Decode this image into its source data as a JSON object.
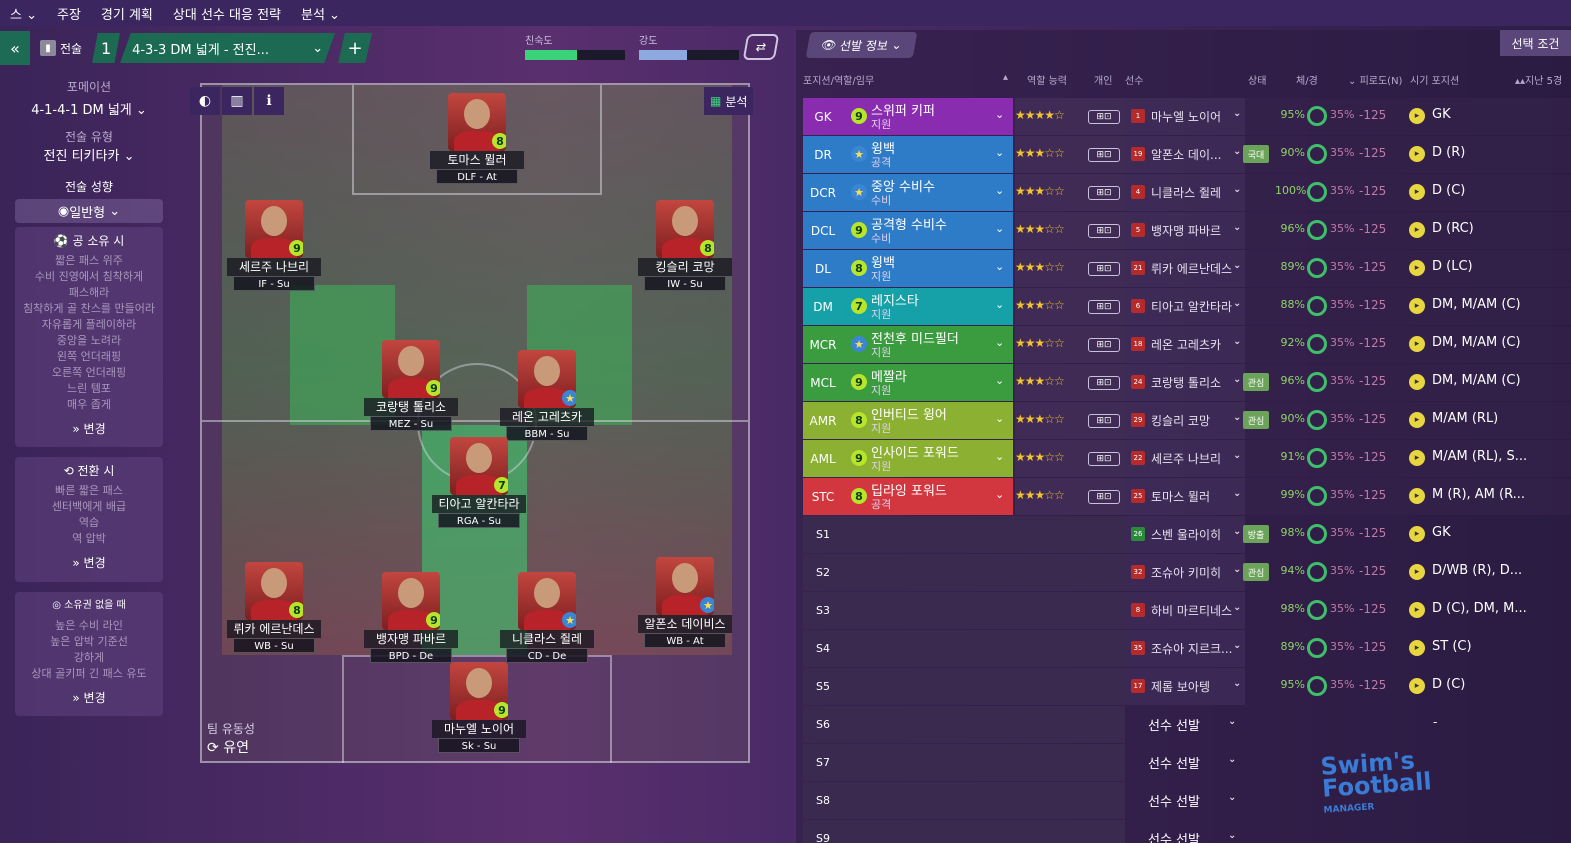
{
  "menu": [
    "스 ⌄",
    "주장",
    "경기 계획",
    "상대 선수 대응 전략",
    "분석 ⌄"
  ],
  "toolbar": {
    "back": "«",
    "tactics_label": "전술",
    "tactic_num": "1",
    "tactic_name": "4-3-3 DM 넓게 - 전진...",
    "add": "+",
    "familiarity_label": "친숙도",
    "intensity_label": "강도",
    "familiarity_fill": 0.52,
    "intensity_fill": 0.48
  },
  "left": {
    "formation_label": "포메이션",
    "formation": "4-1-4-1 DM 넓게",
    "style_label": "전술 유형",
    "style": "전진 티키타카",
    "mentality_label": "전술 성향",
    "mentality": "일반형",
    "in_poss": {
      "title": "공 소유 시",
      "lines": [
        "짧은 패스 위주",
        "수비 진영에서 침착하게",
        "패스해라",
        "침착하게 골 찬스를 만들어라",
        "자유롭게 플레이하라",
        "중앙을 노려라",
        "왼쪽 언더래핑",
        "오른쪽 언더래핑",
        "느린 템포",
        "매우 좁게"
      ],
      "change": "변경"
    },
    "transition": {
      "title": "전환 시",
      "lines": [
        "빠른 짧은 패스",
        "센터백에게 배급",
        "역습",
        "역 압박"
      ],
      "change": "변경"
    },
    "out_poss": {
      "title": "소유권 없을 때",
      "lines": [
        "높은 수비 라인",
        "높은 압박 기준선",
        "강하게",
        "상대 골키퍼 긴 패스 유도"
      ],
      "change": "변경"
    }
  },
  "pitch": {
    "analysis": "분석",
    "fluidity_label": "팀 유동성",
    "fluidity": "유연",
    "players": [
      {
        "name": "토마스 뮐러",
        "role": "DLF - At",
        "rating": "8",
        "star": false
      },
      {
        "name": "세르주 나브리",
        "role": "IF - Su",
        "rating": "9",
        "star": false
      },
      {
        "name": "킹슬리 코망",
        "role": "IW - Su",
        "rating": "8",
        "star": false
      },
      {
        "name": "코랑탱 톨리소",
        "role": "MEZ - Su",
        "rating": "9",
        "star": false
      },
      {
        "name": "레온 고레츠카",
        "role": "BBM - Su",
        "rating": "★",
        "star": true
      },
      {
        "name": "티아고 알칸타라",
        "role": "RGA - Su",
        "rating": "7",
        "star": false
      },
      {
        "name": "뤼카 에르난데스",
        "role": "WB - Su",
        "rating": "8",
        "star": false
      },
      {
        "name": "뱅자맹 파바르",
        "role": "BPD - De",
        "rating": "9",
        "star": false
      },
      {
        "name": "니클라스 쥘레",
        "role": "CD - De",
        "rating": "★",
        "star": true
      },
      {
        "name": "알폰소 데이비스",
        "role": "WB - At",
        "rating": "★",
        "star": true
      },
      {
        "name": "마누엘 노이어",
        "role": "Sk - Su",
        "rating": "9",
        "star": false
      }
    ]
  },
  "right": {
    "selection_info": "선발 정보",
    "select_condition": "선택 조건",
    "headers": {
      "pos": "포지션/역할/임무",
      "ability": "역할 능력",
      "indiv": "개인",
      "player": "선수",
      "status": "상태",
      "fitness": "체/경",
      "fatigue": "피로도(N)",
      "natural": "시기 포지션",
      "last": "지난 5경"
    },
    "rows": [
      {
        "pos": "GK",
        "role": "스위퍼 키퍼",
        "duty": "지원",
        "rating": "9",
        "stars": "★★★★☆",
        "shirt": "1",
        "player": "마누엘 노이어",
        "tag": "",
        "cond": "95%",
        "fat": "35%",
        "fv": "-125",
        "fpos": "GK"
      },
      {
        "pos": "DR",
        "role": "윙백",
        "duty": "공격",
        "rating": "★",
        "stars": "★★★☆☆",
        "shirt": "19",
        "player": "알폰소 데이...",
        "tag": "국대",
        "cond": "90%",
        "fat": "35%",
        "fv": "-125",
        "fpos": "D (R)"
      },
      {
        "pos": "DCR",
        "role": "중앙 수비수",
        "duty": "수비",
        "rating": "★",
        "stars": "★★★☆☆",
        "shirt": "4",
        "player": "니클라스 쥘레",
        "tag": "",
        "cond": "100%",
        "fat": "35%",
        "fv": "-125",
        "fpos": "D (C)"
      },
      {
        "pos": "DCL",
        "role": "공격형 수비수",
        "duty": "수비",
        "rating": "9",
        "stars": "★★★☆☆",
        "shirt": "5",
        "player": "뱅자맹 파바르",
        "tag": "",
        "cond": "96%",
        "fat": "35%",
        "fv": "-125",
        "fpos": "D (RC)"
      },
      {
        "pos": "DL",
        "role": "윙백",
        "duty": "지원",
        "rating": "8",
        "stars": "★★★☆☆",
        "shirt": "21",
        "player": "뤼카 에르난데스",
        "tag": "",
        "cond": "89%",
        "fat": "35%",
        "fv": "-125",
        "fpos": "D (LC)"
      },
      {
        "pos": "DM",
        "role": "레지스타",
        "duty": "지원",
        "rating": "7",
        "stars": "★★★☆☆",
        "shirt": "6",
        "player": "티아고 알칸타라",
        "tag": "",
        "cond": "88%",
        "fat": "35%",
        "fv": "-125",
        "fpos": "DM, M/AM (C)"
      },
      {
        "pos": "MCR",
        "role": "전천후 미드필더",
        "duty": "지원",
        "rating": "★",
        "stars": "★★★☆☆",
        "shirt": "18",
        "player": "레온 고레츠카",
        "tag": "",
        "cond": "92%",
        "fat": "35%",
        "fv": "-125",
        "fpos": "DM, M/AM (C)"
      },
      {
        "pos": "MCL",
        "role": "메짤라",
        "duty": "지원",
        "rating": "9",
        "stars": "★★★☆☆",
        "shirt": "24",
        "player": "코랑탱 톨리소",
        "tag": "관심",
        "cond": "96%",
        "fat": "35%",
        "fv": "-125",
        "fpos": "DM, M/AM (C)"
      },
      {
        "pos": "AMR",
        "role": "인버티드 윙어",
        "duty": "지원",
        "rating": "8",
        "stars": "★★★☆☆",
        "shirt": "29",
        "player": "킹슬리 코망",
        "tag": "관심",
        "cond": "90%",
        "fat": "35%",
        "fv": "-125",
        "fpos": "M/AM (RL)"
      },
      {
        "pos": "AML",
        "role": "인사이드 포워드",
        "duty": "지원",
        "rating": "9",
        "stars": "★★★☆☆",
        "shirt": "22",
        "player": "세르주 나브리",
        "tag": "",
        "cond": "91%",
        "fat": "35%",
        "fv": "-125",
        "fpos": "M/AM (RL), S..."
      },
      {
        "pos": "STC",
        "role": "딥라잉 포워드",
        "duty": "공격",
        "rating": "8",
        "stars": "★★★☆☆",
        "shirt": "25",
        "player": "토마스 뮐러",
        "tag": "",
        "cond": "99%",
        "fat": "35%",
        "fv": "-125",
        "fpos": "M (R), AM (R..."
      }
    ],
    "subs": [
      {
        "pos": "S1",
        "shirt": "26",
        "player": "스벤 울라이히",
        "tag": "방출",
        "cond": "98%",
        "fat": "35%",
        "fv": "-125",
        "fpos": "GK",
        "gk": true
      },
      {
        "pos": "S2",
        "shirt": "32",
        "player": "조슈아 키미히",
        "tag": "관심",
        "cond": "94%",
        "fat": "35%",
        "fv": "-125",
        "fpos": "D/WB (R), D...",
        "gk": false
      },
      {
        "pos": "S3",
        "shirt": "8",
        "player": "하비 마르티네스",
        "tag": "",
        "cond": "98%",
        "fat": "35%",
        "fv": "-125",
        "fpos": "D (C), DM, M...",
        "gk": false
      },
      {
        "pos": "S4",
        "shirt": "35",
        "player": "조슈아 지르크...",
        "tag": "",
        "cond": "89%",
        "fat": "35%",
        "fv": "-125",
        "fpos": "ST (C)",
        "gk": false
      },
      {
        "pos": "S5",
        "shirt": "17",
        "player": "제롬 보아텡",
        "tag": "",
        "cond": "95%",
        "fat": "35%",
        "fv": "-125",
        "fpos": "D (C)",
        "gk": false
      }
    ],
    "empty": [
      {
        "pos": "S6",
        "sel": "선수 선발",
        "dash": "-"
      },
      {
        "pos": "S7",
        "sel": "선수 선발",
        "dash": ""
      },
      {
        "pos": "S8",
        "sel": "선수 선발",
        "dash": ""
      },
      {
        "pos": "S9",
        "sel": "선수 선발",
        "dash": ""
      }
    ]
  },
  "watermark": {
    "line1": "Swim's",
    "line2": "Football",
    "line3": "MANAGER"
  },
  "colors": {
    "gk": "#8a2cb0",
    "def": "#2e7cc8",
    "dm": "#16a1a8",
    "mid": "#3a9c3e",
    "am": "#8cb031",
    "st": "#d2363f"
  }
}
